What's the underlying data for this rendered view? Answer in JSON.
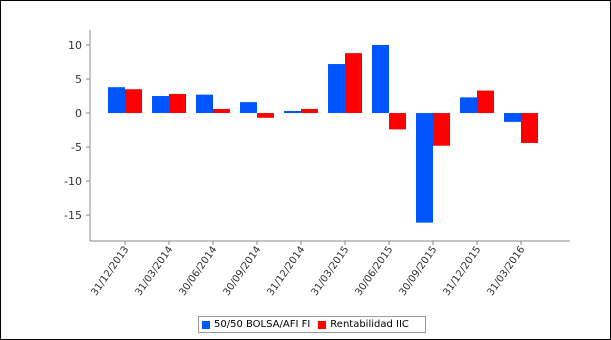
{
  "chart_data": {
    "type": "bar",
    "categories": [
      "31/12/2013",
      "31/03/2014",
      "30/06/2014",
      "30/09/2014",
      "31/12/2014",
      "31/03/2015",
      "30/06/2015",
      "30/09/2015",
      "31/12/2015",
      "31/03/2016"
    ],
    "series": [
      {
        "name": "50/50 BOLSA/AFI FI",
        "color": "#0055ff",
        "values": [
          3.8,
          2.5,
          2.7,
          1.6,
          0.3,
          7.2,
          10.0,
          -16.1,
          2.3,
          -1.3
        ]
      },
      {
        "name": "Rentabilidad IIC",
        "color": "#ff0000",
        "values": [
          3.5,
          2.8,
          0.6,
          -0.7,
          0.6,
          8.8,
          -2.4,
          -4.8,
          3.3,
          -4.4
        ]
      }
    ],
    "yticks": [
      10,
      5,
      0,
      -5,
      -10,
      -15
    ],
    "ylim": [
      -18.8,
      12.2
    ],
    "grid": false,
    "legend_position": "bottom"
  }
}
